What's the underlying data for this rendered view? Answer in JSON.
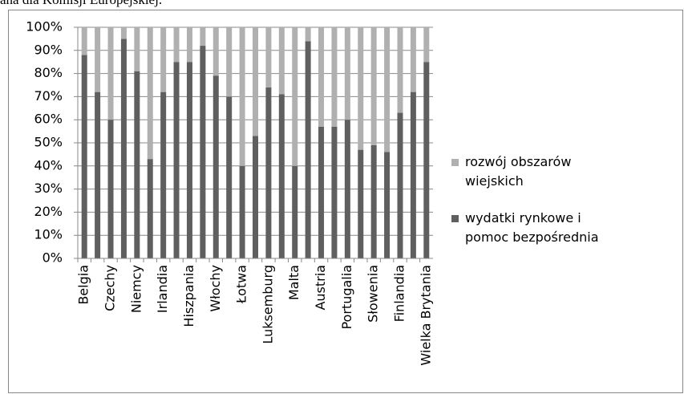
{
  "caption": "ana dla Komisji Europejskiej.",
  "chart_data": {
    "type": "stacked_bar",
    "categories": [
      "Belgia",
      null,
      "Czechy",
      null,
      "Niemcy",
      null,
      "Irlandia",
      null,
      "Hiszpania",
      null,
      "Włochy",
      null,
      "Łotwa",
      null,
      "Luksemburg",
      null,
      "Malta",
      null,
      "Austria",
      null,
      "Portugalia",
      null,
      "Słowenia",
      null,
      "Finlandia",
      null,
      "Wielka Brytania"
    ],
    "series": [
      {
        "name": "wydatki rynkowe i pomoc bezpośrednia",
        "color": "#5f5f5f",
        "values": [
          88,
          72,
          60,
          95,
          81,
          43,
          72,
          85,
          85,
          92,
          79,
          70,
          40,
          53,
          74,
          71,
          40,
          94,
          57,
          57,
          60,
          47,
          49,
          46,
          63,
          72,
          85
        ]
      },
      {
        "name": "rozwój obszarów wiejskich",
        "color": "#b0b0b0",
        "values": [
          12,
          28,
          40,
          5,
          19,
          57,
          28,
          15,
          15,
          8,
          21,
          30,
          60,
          47,
          26,
          29,
          60,
          6,
          43,
          43,
          40,
          53,
          51,
          54,
          37,
          28,
          15
        ]
      }
    ],
    "ylim": [
      0,
      100
    ],
    "yticks": [
      {
        "value": 0,
        "label": "0%"
      },
      {
        "value": 10,
        "label": "10%"
      },
      {
        "value": 20,
        "label": "20%"
      },
      {
        "value": 30,
        "label": "30%"
      },
      {
        "value": 40,
        "label": "40%"
      },
      {
        "value": 50,
        "label": "50%"
      },
      {
        "value": 60,
        "label": "60%"
      },
      {
        "value": 70,
        "label": "70%"
      },
      {
        "value": 80,
        "label": "80%"
      },
      {
        "value": 90,
        "label": "90%"
      },
      {
        "value": 100,
        "label": "100%"
      }
    ],
    "grid": true,
    "legend": "right"
  }
}
